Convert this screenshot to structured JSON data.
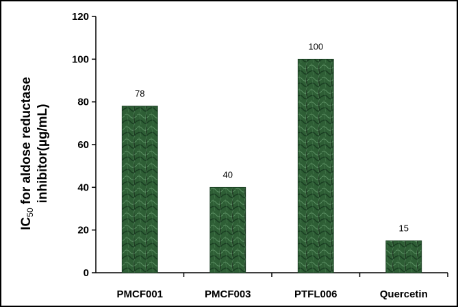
{
  "chart_data": {
    "type": "bar",
    "title": "",
    "xlabel": "",
    "ylabel": {
      "line1_prefix": "IC",
      "line1_subscript": "50",
      "line1_suffix": " for aldose reductase",
      "line2": "inhibitor(µg/mL)"
    },
    "categories": [
      "PMCF001",
      "PMCF003",
      "PTFL006",
      "Quercetin"
    ],
    "values": [
      78,
      40,
      100,
      15
    ],
    "data_labels": [
      "78",
      "40",
      "100",
      "15"
    ],
    "ylim": [
      0,
      120
    ],
    "yticks": [
      0,
      20,
      40,
      60,
      80,
      100,
      120
    ],
    "grid": false,
    "legend": "none",
    "bar_color": "#2e5e35",
    "bar_color_light": "#5f9367",
    "bar_color_dark": "#163a1f"
  }
}
